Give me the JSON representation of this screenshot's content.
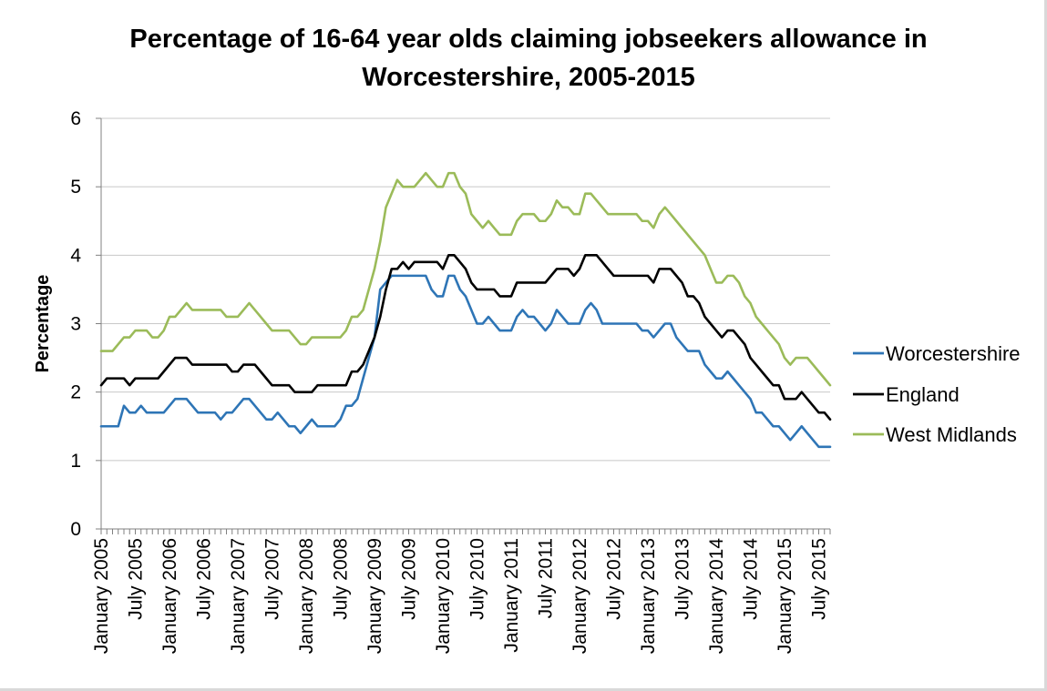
{
  "chart_data": {
    "type": "line",
    "title_line1": "Percentage of 16-64 year olds claiming jobseekers allowance in",
    "title_line2": "Worcestershire, 2005-2015",
    "ylabel": "Percentage",
    "xlabel": "",
    "ylim": [
      0,
      6
    ],
    "yticks": [
      0,
      1,
      2,
      3,
      4,
      5,
      6
    ],
    "grid": "horizontal",
    "legend_position": "right",
    "x_tick_labels": [
      "January 2005",
      "July 2005",
      "January 2006",
      "July 2006",
      "January 2007",
      "July 2007",
      "January 2008",
      "July 2008",
      "January 2009",
      "July 2009",
      "January 2010",
      "July 2010",
      "January 2011",
      "July 2011",
      "January 2012",
      "July 2012",
      "January 2013",
      "July 2013",
      "January 2014",
      "July 2014",
      "January 2015",
      "July 2015"
    ],
    "x_start": "January 2005",
    "x_end": "July 2015",
    "series": [
      {
        "name": "Worcestershire",
        "color": "#2e75b6",
        "values": [
          1.5,
          1.5,
          1.5,
          1.5,
          1.8,
          1.7,
          1.7,
          1.8,
          1.7,
          1.7,
          1.7,
          1.7,
          1.8,
          1.9,
          1.9,
          1.9,
          1.8,
          1.7,
          1.7,
          1.7,
          1.7,
          1.6,
          1.7,
          1.7,
          1.8,
          1.9,
          1.9,
          1.8,
          1.7,
          1.6,
          1.6,
          1.7,
          1.6,
          1.5,
          1.5,
          1.4,
          1.5,
          1.6,
          1.5,
          1.5,
          1.5,
          1.5,
          1.6,
          1.8,
          1.8,
          1.9,
          2.2,
          2.5,
          2.8,
          3.5,
          3.6,
          3.7,
          3.7,
          3.7,
          3.7,
          3.7,
          3.7,
          3.7,
          3.5,
          3.4,
          3.4,
          3.7,
          3.7,
          3.5,
          3.4,
          3.2,
          3.0,
          3.0,
          3.1,
          3.0,
          2.9,
          2.9,
          2.9,
          3.1,
          3.2,
          3.1,
          3.1,
          3.0,
          2.9,
          3.0,
          3.2,
          3.1,
          3.0,
          3.0,
          3.0,
          3.2,
          3.3,
          3.2,
          3.0,
          3.0,
          3.0,
          3.0,
          3.0,
          3.0,
          3.0,
          2.9,
          2.9,
          2.8,
          2.9,
          3.0,
          3.0,
          2.8,
          2.7,
          2.6,
          2.6,
          2.6,
          2.4,
          2.3,
          2.2,
          2.2,
          2.3,
          2.2,
          2.1,
          2.0,
          1.9,
          1.7,
          1.7,
          1.6,
          1.5,
          1.5,
          1.4,
          1.3,
          1.4,
          1.5,
          1.4,
          1.3,
          1.2,
          1.2,
          1.2
        ]
      },
      {
        "name": "England",
        "color": "#000000",
        "values": [
          2.1,
          2.2,
          2.2,
          2.2,
          2.2,
          2.1,
          2.2,
          2.2,
          2.2,
          2.2,
          2.2,
          2.3,
          2.4,
          2.5,
          2.5,
          2.5,
          2.4,
          2.4,
          2.4,
          2.4,
          2.4,
          2.4,
          2.4,
          2.3,
          2.3,
          2.4,
          2.4,
          2.4,
          2.3,
          2.2,
          2.1,
          2.1,
          2.1,
          2.1,
          2.0,
          2.0,
          2.0,
          2.0,
          2.1,
          2.1,
          2.1,
          2.1,
          2.1,
          2.1,
          2.3,
          2.3,
          2.4,
          2.6,
          2.8,
          3.1,
          3.5,
          3.8,
          3.8,
          3.9,
          3.8,
          3.9,
          3.9,
          3.9,
          3.9,
          3.9,
          3.8,
          4.0,
          4.0,
          3.9,
          3.8,
          3.6,
          3.5,
          3.5,
          3.5,
          3.5,
          3.4,
          3.4,
          3.4,
          3.6,
          3.6,
          3.6,
          3.6,
          3.6,
          3.6,
          3.7,
          3.8,
          3.8,
          3.8,
          3.7,
          3.8,
          4.0,
          4.0,
          4.0,
          3.9,
          3.8,
          3.7,
          3.7,
          3.7,
          3.7,
          3.7,
          3.7,
          3.7,
          3.6,
          3.8,
          3.8,
          3.8,
          3.7,
          3.6,
          3.4,
          3.4,
          3.3,
          3.1,
          3.0,
          2.9,
          2.8,
          2.9,
          2.9,
          2.8,
          2.7,
          2.5,
          2.4,
          2.3,
          2.2,
          2.1,
          2.1,
          1.9,
          1.9,
          1.9,
          2.0,
          1.9,
          1.8,
          1.7,
          1.7,
          1.6
        ]
      },
      {
        "name": "West Midlands",
        "color": "#9bbb59",
        "values": [
          2.6,
          2.6,
          2.6,
          2.7,
          2.8,
          2.8,
          2.9,
          2.9,
          2.9,
          2.8,
          2.8,
          2.9,
          3.1,
          3.1,
          3.2,
          3.3,
          3.2,
          3.2,
          3.2,
          3.2,
          3.2,
          3.2,
          3.1,
          3.1,
          3.1,
          3.2,
          3.3,
          3.2,
          3.1,
          3.0,
          2.9,
          2.9,
          2.9,
          2.9,
          2.8,
          2.7,
          2.7,
          2.8,
          2.8,
          2.8,
          2.8,
          2.8,
          2.8,
          2.9,
          3.1,
          3.1,
          3.2,
          3.5,
          3.8,
          4.2,
          4.7,
          4.9,
          5.1,
          5.0,
          5.0,
          5.0,
          5.1,
          5.2,
          5.1,
          5.0,
          5.0,
          5.2,
          5.2,
          5.0,
          4.9,
          4.6,
          4.5,
          4.4,
          4.5,
          4.4,
          4.3,
          4.3,
          4.3,
          4.5,
          4.6,
          4.6,
          4.6,
          4.5,
          4.5,
          4.6,
          4.8,
          4.7,
          4.7,
          4.6,
          4.6,
          4.9,
          4.9,
          4.8,
          4.7,
          4.6,
          4.6,
          4.6,
          4.6,
          4.6,
          4.6,
          4.5,
          4.5,
          4.4,
          4.6,
          4.7,
          4.6,
          4.5,
          4.4,
          4.3,
          4.2,
          4.1,
          4.0,
          3.8,
          3.6,
          3.6,
          3.7,
          3.7,
          3.6,
          3.4,
          3.3,
          3.1,
          3.0,
          2.9,
          2.8,
          2.7,
          2.5,
          2.4,
          2.5,
          2.5,
          2.5,
          2.4,
          2.3,
          2.2,
          2.1
        ]
      }
    ]
  }
}
